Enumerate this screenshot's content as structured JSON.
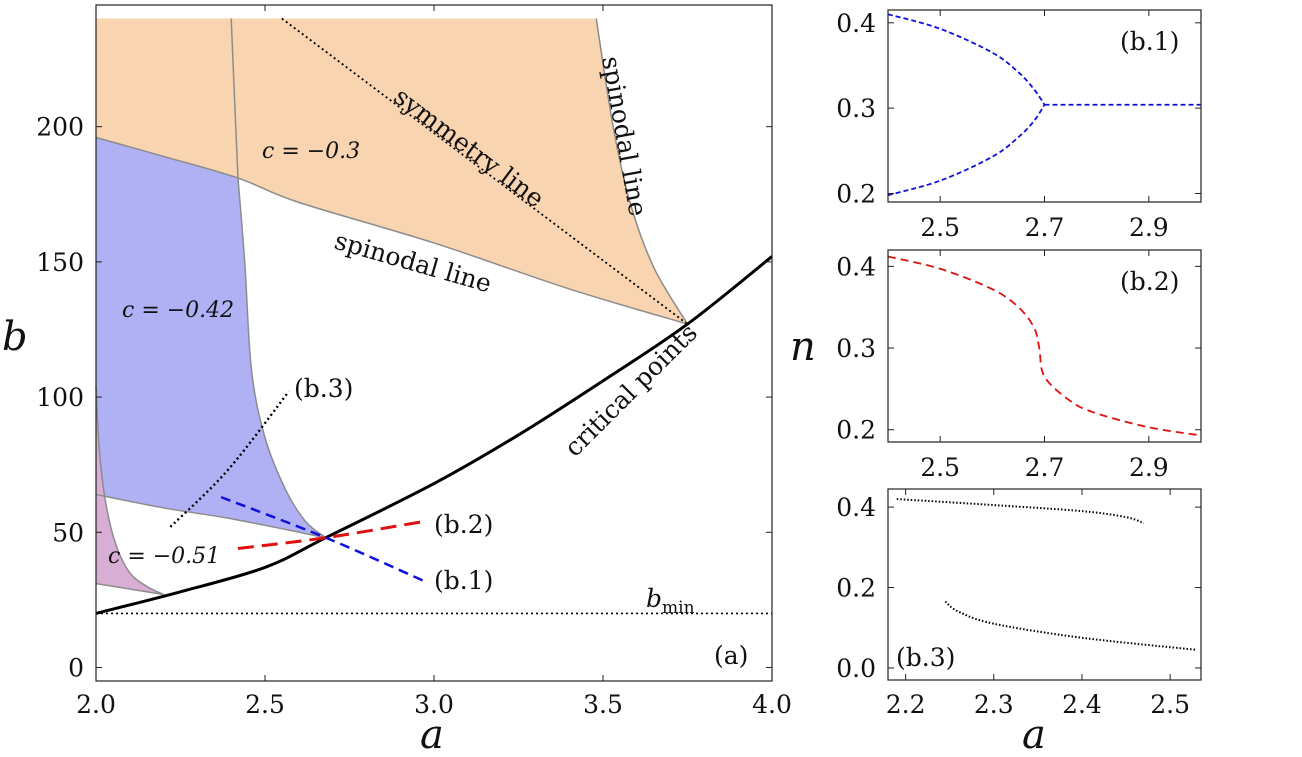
{
  "chart_data": [
    {
      "panel": "(a)",
      "type": "line",
      "xlabel": "a",
      "ylabel": "b",
      "xlim": [
        2.0,
        4.0
      ],
      "ylim": [
        -5,
        245
      ],
      "xticks": [
        "2.0",
        "2.5",
        "3.0",
        "3.5",
        "4.0"
      ],
      "yticks": [
        "0",
        "50",
        "100",
        "150",
        "200"
      ],
      "panel_label": "(a)",
      "regions": [
        {
          "name": "c = -0.3",
          "color": "#f9d4b0"
        },
        {
          "name": "c = -0.42",
          "color": "#b0b0f5"
        },
        {
          "name": "c = -0.51",
          "color": "#d9aed5"
        }
      ],
      "annotations": {
        "symmetry_line": "symmetry line",
        "spinodal_line_1": "spinodal line",
        "spinodal_line_2": "spinodal line",
        "critical_points": "critical points",
        "c1": "c = −0.3",
        "c2": "c = −0.42",
        "c3": "c = −0.51",
        "b1": "(b.1)",
        "b2": "(b.2)",
        "b3": "(b.3)",
        "bmin_base": "b",
        "bmin_sub": "min"
      },
      "series": [
        {
          "name": "critical points",
          "x": [
            2.0,
            2.25,
            2.5,
            2.68,
            3.0,
            3.25,
            3.5,
            3.75,
            4.0
          ],
          "y": [
            20,
            28,
            37,
            48,
            68,
            86,
            106,
            127,
            152
          ]
        },
        {
          "name": "b_min",
          "x": [
            2.0,
            4.0
          ],
          "y": [
            20,
            20
          ]
        },
        {
          "name": "symmetry line",
          "x": [
            2.55,
            3.75
          ],
          "y": [
            240,
            127
          ]
        },
        {
          "name": "(b.1)",
          "x": [
            2.37,
            2.68,
            2.97
          ],
          "y": [
            63,
            48,
            32
          ]
        },
        {
          "name": "(b.2)",
          "x": [
            2.42,
            2.68,
            2.97
          ],
          "y": [
            44,
            48,
            54
          ]
        },
        {
          "name": "(b.3)",
          "x": [
            2.22,
            2.39,
            2.57
          ],
          "y": [
            52,
            73,
            102
          ]
        }
      ]
    },
    {
      "panel": "(b.1)",
      "type": "line",
      "xlim": [
        2.4,
        3.0
      ],
      "ylim": [
        0.19,
        0.415
      ],
      "xticks": [
        "2.5",
        "2.7",
        "2.9"
      ],
      "yticks": [
        "0.2",
        "0.3",
        "0.4"
      ],
      "panel_label": "(b.1)",
      "series": [
        {
          "name": "upper",
          "x": [
            2.4,
            2.5,
            2.6,
            2.65,
            2.68,
            2.7
          ],
          "y": [
            0.41,
            0.393,
            0.365,
            0.342,
            0.322,
            0.304
          ]
        },
        {
          "name": "lower",
          "x": [
            2.4,
            2.5,
            2.6,
            2.65,
            2.68,
            2.7
          ],
          "y": [
            0.198,
            0.215,
            0.243,
            0.266,
            0.285,
            0.304
          ]
        },
        {
          "name": "single",
          "x": [
            2.7,
            3.0
          ],
          "y": [
            0.304,
            0.304
          ]
        }
      ]
    },
    {
      "panel": "(b.2)",
      "type": "line",
      "xlim": [
        2.4,
        3.0
      ],
      "ylim": [
        0.185,
        0.42
      ],
      "xticks": [
        "2.5",
        "2.7",
        "2.9"
      ],
      "yticks": [
        "0.2",
        "0.3",
        "0.4"
      ],
      "ylabel": "n",
      "panel_label": "(b.2)",
      "series": [
        {
          "name": "n",
          "x": [
            2.4,
            2.5,
            2.6,
            2.65,
            2.68,
            2.69,
            2.7,
            2.75,
            2.8,
            2.9,
            3.0
          ],
          "y": [
            0.412,
            0.397,
            0.372,
            0.35,
            0.325,
            0.3,
            0.265,
            0.235,
            0.22,
            0.203,
            0.193
          ]
        }
      ]
    },
    {
      "panel": "(b.3)",
      "type": "line",
      "xlim": [
        2.18,
        2.535
      ],
      "ylim": [
        -0.03,
        0.445
      ],
      "xticks": [
        "2.2",
        "2.3",
        "2.4",
        "2.5"
      ],
      "yticks": [
        "0.0",
        "0.2",
        "0.4"
      ],
      "xlabel": "a",
      "panel_label": "(b.3)",
      "series": [
        {
          "name": "upper branch",
          "x": [
            2.19,
            2.3,
            2.4,
            2.45,
            2.47
          ],
          "y": [
            0.42,
            0.405,
            0.39,
            0.375,
            0.36
          ]
        },
        {
          "name": "lower branch",
          "x": [
            2.245,
            2.26,
            2.3,
            2.4,
            2.53
          ],
          "y": [
            0.165,
            0.14,
            0.11,
            0.075,
            0.045
          ]
        }
      ]
    }
  ],
  "colors": {
    "orange_region": "#f9d4b0",
    "blue_region": "#b0b0f5",
    "purple_region": "#d9aed5",
    "curve_blue": "#1010dd",
    "curve_red": "#e01010",
    "boundary_gray": "#8c8c8c"
  }
}
